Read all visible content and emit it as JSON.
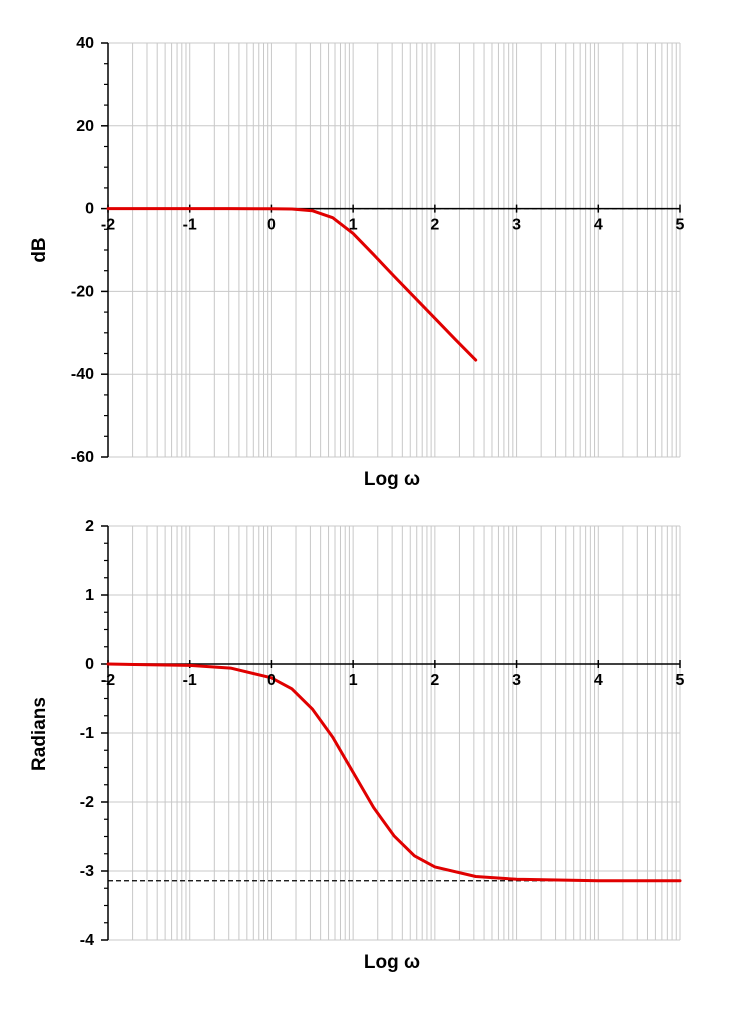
{
  "chart_data": [
    {
      "type": "line",
      "xlabel": "Log ω",
      "ylabel": "dB",
      "xlim": [
        -2,
        5
      ],
      "ylim": [
        -60,
        40
      ],
      "x_ticks": [
        "-2",
        "-1",
        "0",
        "1",
        "2",
        "3",
        "4",
        "5"
      ],
      "y_ticks": [
        "40",
        "20",
        "0",
        "-20",
        "-40",
        "-60"
      ],
      "y_tick_values": [
        40,
        20,
        0,
        -20,
        -40,
        -60
      ],
      "grid": "log-decade vertical, horizontal every 20",
      "series": [
        {
          "color": "#e00000",
          "x": [
            -2,
            -1,
            -0.5,
            0,
            0.25,
            0.5,
            0.75,
            1,
            1.25,
            1.5,
            1.75,
            2,
            2.25,
            2.5
          ],
          "y": [
            0,
            0,
            0,
            -0.04,
            -0.1,
            -0.5,
            -2.2,
            -6.0,
            -11.1,
            -16.3,
            -21.4,
            -26.5,
            -31.6,
            -36.6
          ]
        }
      ],
      "reference_lines": [
        {
          "y": 0,
          "style": "dashed",
          "color": "#000000"
        }
      ]
    },
    {
      "type": "line",
      "xlabel": "Log ω",
      "ylabel": "Radians",
      "xlim": [
        -2,
        5
      ],
      "ylim": [
        -4,
        2
      ],
      "x_ticks": [
        "-2",
        "-1",
        "0",
        "1",
        "2",
        "3",
        "4",
        "5"
      ],
      "y_ticks": [
        "2",
        "1",
        "0",
        "-1",
        "-2",
        "-3",
        "-4"
      ],
      "y_tick_values": [
        2,
        1,
        0,
        -1,
        -2,
        -3,
        -4
      ],
      "grid": "log-decade vertical, horizontal every 1",
      "series": [
        {
          "color": "#e00000",
          "x": [
            -2,
            -1.5,
            -1,
            -0.5,
            0,
            0.25,
            0.5,
            0.75,
            1,
            1.25,
            1.5,
            1.75,
            2,
            2.5,
            3,
            4,
            5
          ],
          "y": [
            0,
            -0.01,
            -0.02,
            -0.06,
            -0.2,
            -0.36,
            -0.65,
            -1.06,
            -1.57,
            -2.08,
            -2.49,
            -2.78,
            -2.94,
            -3.08,
            -3.12,
            -3.14,
            -3.14
          ]
        }
      ],
      "reference_lines": [
        {
          "y": -3.14159,
          "style": "dashed",
          "color": "#000000"
        }
      ]
    }
  ]
}
